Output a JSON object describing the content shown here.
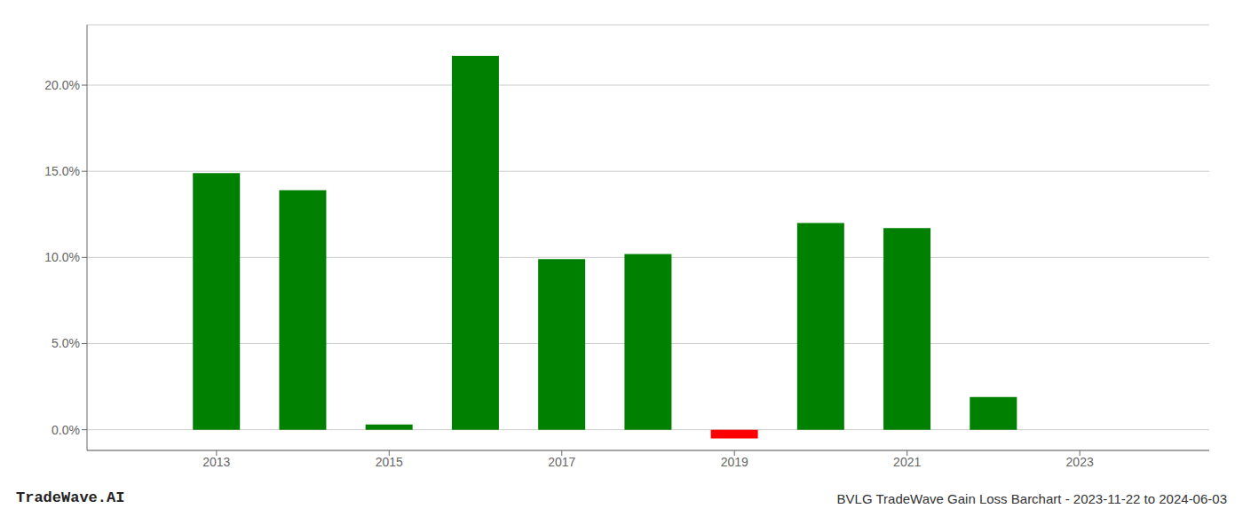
{
  "chart_data": {
    "type": "bar",
    "title": "BVLG TradeWave Gain Loss Barchart - 2023-11-22 to 2024-06-03",
    "annotations": [
      "TradeWave.AI"
    ],
    "x": [
      2013,
      2014,
      2015,
      2016,
      2017,
      2018,
      2019,
      2020,
      2021,
      2022,
      2023
    ],
    "values": [
      0.149,
      0.139,
      0.003,
      0.217,
      0.099,
      0.102,
      -0.005,
      0.12,
      0.117,
      0.019,
      null
    ],
    "colors": [
      "#008000",
      "#008000",
      "#008000",
      "#008000",
      "#008000",
      "#008000",
      "#ff0000",
      "#008000",
      "#008000",
      "#008000",
      null
    ],
    "xlim": [
      2011.5,
      2024.5
    ],
    "xticks": [
      2013,
      2015,
      2017,
      2019,
      2021,
      2023
    ],
    "ylim": [
      -0.012,
      0.235
    ],
    "yticks": [
      {
        "value": 0.0,
        "label": "0.0%"
      },
      {
        "value": 0.05,
        "label": "5.0%"
      },
      {
        "value": 0.1,
        "label": "10.0%"
      },
      {
        "value": 0.15,
        "label": "15.0%"
      },
      {
        "value": 0.2,
        "label": "20.0%"
      }
    ],
    "grid": true
  }
}
